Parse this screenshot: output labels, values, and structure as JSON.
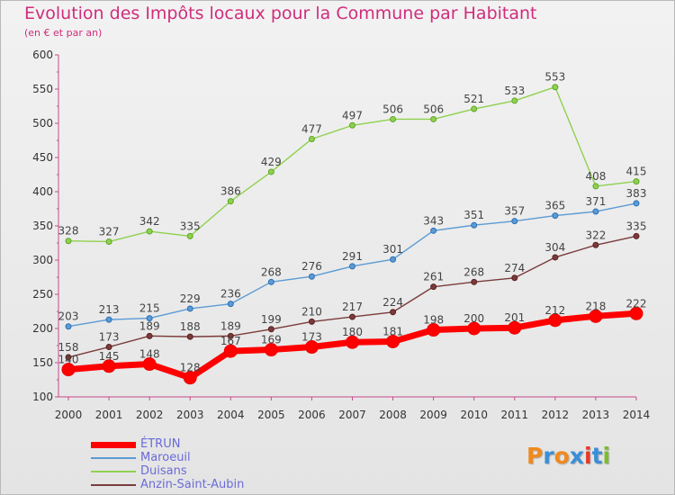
{
  "title": "Evolution des Impôts locaux pour la Commune par Habitant",
  "subtitle": "(en € et par an)",
  "logo": {
    "text": "Proxiti",
    "letters": [
      "P",
      "r",
      "o",
      "x",
      "i",
      "t",
      "i"
    ],
    "colors": [
      "#f08a1e",
      "#3a8fd6",
      "#f08a1e",
      "#3a8fd6",
      "#e43b2a",
      "#3a8fd6",
      "#7cbd2c"
    ]
  },
  "chart_data": {
    "type": "line",
    "title": "Evolution des Impôts locaux pour la Commune par Habitant",
    "subtitle": "(en € et par an)",
    "xlabel": "",
    "ylabel": "",
    "ylim": [
      100,
      600
    ],
    "yticks": [
      100,
      150,
      200,
      250,
      300,
      350,
      400,
      450,
      500,
      550,
      600
    ],
    "x": [
      "2000",
      "2001",
      "2002",
      "2003",
      "2004",
      "2005",
      "2006",
      "2007",
      "2008",
      "2009",
      "2010",
      "2011",
      "2012",
      "2013",
      "2014"
    ],
    "grid": false,
    "legend_position": "bottom-left",
    "series": [
      {
        "name": "ÉTRUN",
        "color": "#ff0000",
        "values": [
          140,
          145,
          148,
          128,
          167,
          169,
          173,
          180,
          181,
          198,
          200,
          201,
          212,
          218,
          222
        ],
        "labels": [
          "140",
          "145",
          "148",
          "128",
          "167",
          "169",
          "173",
          "180",
          "181",
          "198",
          "200",
          "201",
          "212",
          "218",
          "222"
        ]
      },
      {
        "name": "Maroeuil",
        "color": "#5b9bd5",
        "values": [
          203,
          213,
          215,
          229,
          236,
          268,
          276,
          291,
          301,
          343,
          351,
          357,
          365,
          371,
          383
        ],
        "labels": [
          "203",
          "213",
          "215",
          "229",
          "236",
          "268",
          "276",
          "291",
          "301",
          "343",
          "351",
          "357",
          "365",
          "371",
          "383"
        ]
      },
      {
        "name": "Duisans",
        "color": "#8fd14f",
        "values": [
          328,
          327,
          342,
          335,
          386,
          429,
          477,
          497,
          506,
          506,
          521,
          533,
          553,
          408,
          415
        ],
        "labels": [
          "328",
          "327",
          "342",
          "335",
          "386",
          "429",
          "477",
          "497",
          "506",
          "506",
          "521",
          "533",
          "553",
          "408",
          "415"
        ]
      },
      {
        "name": "Anzin-Saint-Aubin",
        "color": "#7a3b3b",
        "values": [
          158,
          173,
          189,
          188,
          189,
          199,
          210,
          217,
          224,
          261,
          268,
          274,
          304,
          322,
          335
        ],
        "labels": [
          "158",
          "173",
          "189",
          "188",
          "189",
          "199",
          "210",
          "217",
          "224",
          "261",
          "268",
          "274",
          "304",
          "322",
          "335"
        ]
      }
    ]
  }
}
